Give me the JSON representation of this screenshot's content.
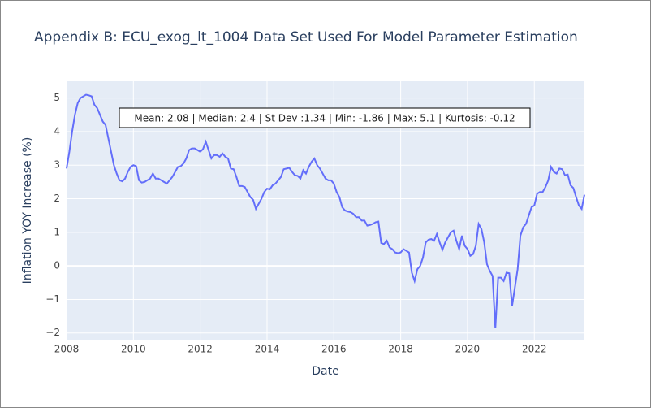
{
  "chart_data": {
    "type": "line",
    "title": "Appendix B: ECU_exog_lt_1004 Data Set Used For Model Parameter Estimation",
    "annotation": "Mean: 2.08 | Median: 2.4 | St Dev :1.34 | Min: -1.86 | Max: 5.1 | Kurtosis: -0.12",
    "xlabel": "Date",
    "ylabel": "Inflation YOY Increase (%)",
    "color": "#636efa",
    "grid": true,
    "x": [
      "2008-01",
      "2008-02",
      "2008-03",
      "2008-04",
      "2008-05",
      "2008-06",
      "2008-07",
      "2008-08",
      "2008-09",
      "2008-10",
      "2008-11",
      "2008-12",
      "2009-01",
      "2009-02",
      "2009-03",
      "2009-04",
      "2009-05",
      "2009-06",
      "2009-07",
      "2009-08",
      "2009-09",
      "2009-10",
      "2009-11",
      "2009-12",
      "2010-01",
      "2010-02",
      "2010-03",
      "2010-04",
      "2010-05",
      "2010-06",
      "2010-07",
      "2010-08",
      "2010-09",
      "2010-10",
      "2010-11",
      "2010-12",
      "2011-01",
      "2011-02",
      "2011-03",
      "2011-04",
      "2011-05",
      "2011-06",
      "2011-07",
      "2011-08",
      "2011-09",
      "2011-10",
      "2011-11",
      "2011-12",
      "2012-01",
      "2012-02",
      "2012-03",
      "2012-04",
      "2012-05",
      "2012-06",
      "2012-07",
      "2012-08",
      "2012-09",
      "2012-10",
      "2012-11",
      "2012-12",
      "2013-01",
      "2013-02",
      "2013-03",
      "2013-04",
      "2013-05",
      "2013-06",
      "2013-07",
      "2013-08",
      "2013-09",
      "2013-10",
      "2013-11",
      "2013-12",
      "2014-01",
      "2014-02",
      "2014-03",
      "2014-04",
      "2014-05",
      "2014-06",
      "2014-07",
      "2014-08",
      "2014-09",
      "2014-10",
      "2014-11",
      "2014-12",
      "2015-01",
      "2015-02",
      "2015-03",
      "2015-04",
      "2015-05",
      "2015-06",
      "2015-07",
      "2015-08",
      "2015-09",
      "2015-10",
      "2015-11",
      "2015-12",
      "2016-01",
      "2016-02",
      "2016-03",
      "2016-04",
      "2016-05",
      "2016-06",
      "2016-07",
      "2016-08",
      "2016-09",
      "2016-10",
      "2016-11",
      "2016-12",
      "2017-01",
      "2017-02",
      "2017-03",
      "2017-04",
      "2017-05",
      "2017-06",
      "2017-07",
      "2017-08",
      "2017-09",
      "2017-10",
      "2017-11",
      "2017-12",
      "2018-01",
      "2018-02",
      "2018-03",
      "2018-04",
      "2018-05",
      "2018-06",
      "2018-07",
      "2018-08",
      "2018-09",
      "2018-10",
      "2018-11",
      "2018-12",
      "2019-01",
      "2019-02",
      "2019-03",
      "2019-04",
      "2019-05",
      "2019-06",
      "2019-07",
      "2019-08",
      "2019-09",
      "2019-10",
      "2019-11",
      "2019-12",
      "2020-01",
      "2020-02",
      "2020-03",
      "2020-04",
      "2020-05",
      "2020-06",
      "2020-07",
      "2020-08",
      "2020-09",
      "2020-10",
      "2020-11",
      "2020-12",
      "2021-01",
      "2021-02",
      "2021-03",
      "2021-04",
      "2021-05",
      "2021-06",
      "2021-07",
      "2021-08",
      "2021-09",
      "2021-10",
      "2021-11",
      "2021-12",
      "2022-01",
      "2022-02",
      "2022-03",
      "2022-04",
      "2022-05",
      "2022-06",
      "2022-07",
      "2022-08",
      "2022-09",
      "2022-10",
      "2022-11",
      "2022-12",
      "2023-01",
      "2023-02",
      "2023-03",
      "2023-04",
      "2023-05",
      "2023-06",
      "2023-07"
    ],
    "values": [
      2.9,
      3.4,
      4.0,
      4.5,
      4.85,
      5.0,
      5.05,
      5.1,
      5.08,
      5.05,
      4.8,
      4.7,
      4.5,
      4.3,
      4.2,
      3.8,
      3.4,
      3.0,
      2.75,
      2.55,
      2.52,
      2.6,
      2.8,
      2.95,
      3.0,
      2.97,
      2.55,
      2.48,
      2.5,
      2.55,
      2.6,
      2.75,
      2.6,
      2.6,
      2.55,
      2.5,
      2.45,
      2.55,
      2.65,
      2.8,
      2.95,
      2.97,
      3.05,
      3.2,
      3.45,
      3.5,
      3.5,
      3.45,
      3.4,
      3.48,
      3.7,
      3.45,
      3.2,
      3.3,
      3.3,
      3.25,
      3.35,
      3.25,
      3.2,
      2.9,
      2.88,
      2.65,
      2.38,
      2.38,
      2.35,
      2.2,
      2.05,
      1.97,
      1.7,
      1.85,
      2.0,
      2.2,
      2.3,
      2.28,
      2.4,
      2.45,
      2.55,
      2.65,
      2.88,
      2.9,
      2.92,
      2.8,
      2.7,
      2.68,
      2.6,
      2.85,
      2.75,
      2.95,
      3.1,
      3.2,
      3.0,
      2.9,
      2.75,
      2.6,
      2.55,
      2.55,
      2.45,
      2.2,
      2.05,
      1.75,
      1.65,
      1.62,
      1.6,
      1.55,
      1.45,
      1.45,
      1.35,
      1.35,
      1.2,
      1.22,
      1.25,
      1.3,
      1.32,
      0.68,
      0.65,
      0.75,
      0.55,
      0.5,
      0.4,
      0.38,
      0.4,
      0.5,
      0.45,
      0.4,
      -0.2,
      -0.45,
      -0.1,
      0.0,
      0.25,
      0.7,
      0.78,
      0.8,
      0.75,
      0.95,
      0.7,
      0.48,
      0.7,
      0.85,
      1.0,
      1.05,
      0.75,
      0.5,
      0.9,
      0.6,
      0.5,
      0.3,
      0.35,
      0.6,
      1.25,
      1.1,
      0.7,
      0.05,
      -0.15,
      -0.3,
      -1.86,
      -0.35,
      -0.35,
      -0.45,
      -0.2,
      -0.22,
      -1.2,
      -0.65,
      -0.1,
      0.9,
      1.15,
      1.25,
      1.5,
      1.75,
      1.8,
      2.15,
      2.2,
      2.2,
      2.35,
      2.55,
      2.95,
      2.8,
      2.75,
      2.9,
      2.88,
      2.7,
      2.72,
      2.4,
      2.32,
      2.05,
      1.8,
      1.7,
      2.12
    ],
    "xlim": [
      "2008-01",
      "2023-07"
    ],
    "xticks": [
      {
        "value": "2008-01",
        "label": "2008"
      },
      {
        "value": "2010-01",
        "label": "2010"
      },
      {
        "value": "2012-01",
        "label": "2012"
      },
      {
        "value": "2014-01",
        "label": "2014"
      },
      {
        "value": "2016-01",
        "label": "2016"
      },
      {
        "value": "2018-01",
        "label": "2018"
      },
      {
        "value": "2020-01",
        "label": "2020"
      },
      {
        "value": "2022-01",
        "label": "2022"
      }
    ],
    "ylim": [
      -2.2,
      5.5
    ],
    "yticks": [
      {
        "value": -2,
        "label": "−2"
      },
      {
        "value": -1,
        "label": "−1"
      },
      0,
      1,
      2,
      3,
      4,
      5
    ]
  }
}
